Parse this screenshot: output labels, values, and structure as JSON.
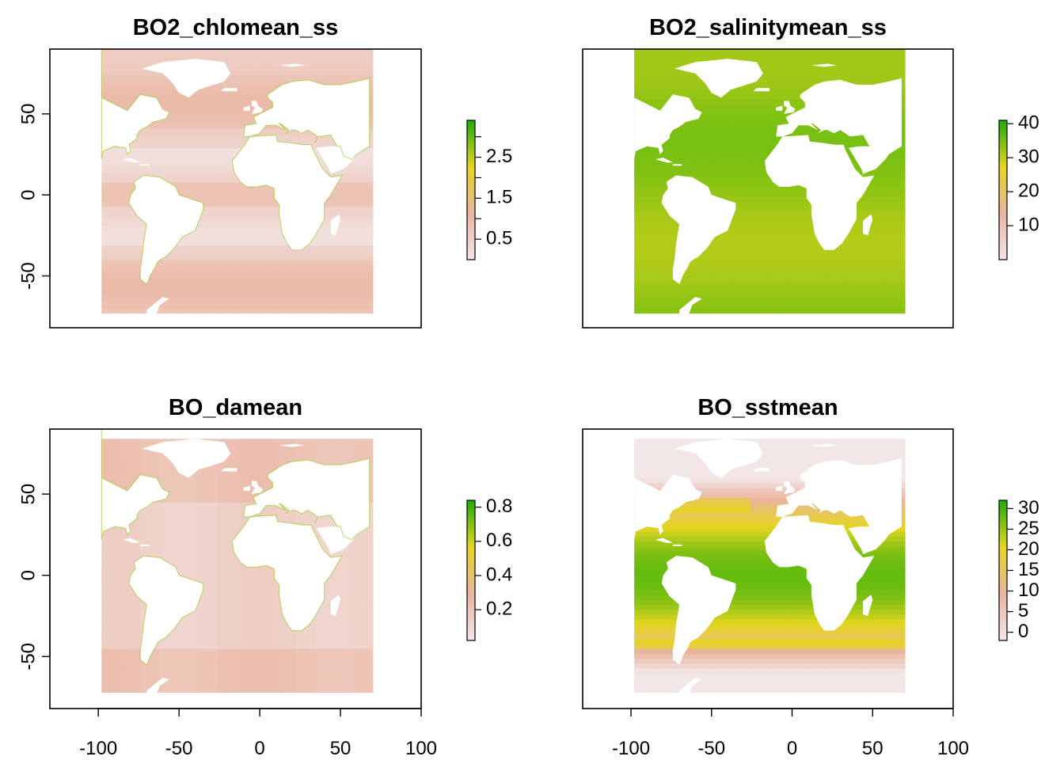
{
  "figure": {
    "colors": {
      "ocean_low": "#f2e6e6",
      "ocean_mid": "#eab49f",
      "mid_yellow": "#e6d520",
      "high_green": "#1cae05",
      "land": "#ffffff",
      "frame": "#000000"
    }
  },
  "chart_data": [
    {
      "type": "heatmap",
      "title": "BO2_chlomean_ss",
      "xlabel": "",
      "ylabel": "",
      "xlim": [
        -130,
        100
      ],
      "ylim": [
        -82,
        90
      ],
      "x_ticks": [],
      "x_tick_labels": [],
      "y_ticks": [
        -50,
        0,
        50
      ],
      "y_tick_labels": [
        "-50",
        "0",
        "50"
      ],
      "layer": "chlorophyll",
      "colorbar": {
        "range": [
          0,
          3.4
        ],
        "ticks": [
          0.5,
          1,
          1.5,
          2,
          2.5,
          3
        ],
        "labels": [
          "0.5",
          "",
          "1.5",
          "",
          "2.5",
          ""
        ]
      }
    },
    {
      "type": "heatmap",
      "title": "BO2_salinitymean_ss",
      "xlabel": "",
      "ylabel": "",
      "xlim": [
        -130,
        100
      ],
      "ylim": [
        -82,
        90
      ],
      "x_ticks": [],
      "x_tick_labels": [],
      "y_ticks": [],
      "y_tick_labels": [],
      "layer": "salinity",
      "colorbar": {
        "range": [
          0,
          41
        ],
        "ticks": [
          10,
          20,
          30,
          40
        ],
        "labels": [
          "10",
          "20",
          "30",
          "40"
        ]
      }
    },
    {
      "type": "heatmap",
      "title": "BO_damean",
      "xlabel": "",
      "ylabel": "",
      "xlim": [
        -130,
        100
      ],
      "ylim": [
        -82,
        90
      ],
      "x_ticks": [
        -100,
        -50,
        0,
        50,
        100
      ],
      "x_tick_labels": [
        "-100",
        "-50",
        "0",
        "50",
        "100"
      ],
      "y_ticks": [
        -50,
        0,
        50
      ],
      "y_tick_labels": [
        "-50",
        "0",
        "50"
      ],
      "layer": "diffuse_attenuation",
      "colorbar": {
        "range": [
          0.02,
          0.84
        ],
        "ticks": [
          0.2,
          0.4,
          0.6,
          0.8
        ],
        "labels": [
          "0.2",
          "0.4",
          "0.6",
          "0.8"
        ]
      }
    },
    {
      "type": "heatmap",
      "title": "BO_sstmean",
      "xlabel": "",
      "ylabel": "",
      "xlim": [
        -130,
        100
      ],
      "ylim": [
        -82,
        90
      ],
      "x_ticks": [
        -100,
        -50,
        0,
        50,
        100
      ],
      "x_tick_labels": [
        "-100",
        "-50",
        "0",
        "50",
        "100"
      ],
      "y_ticks": [],
      "y_tick_labels": [],
      "layer": "sea_surface_temperature",
      "colorbar": {
        "range": [
          -2,
          32
        ],
        "ticks": [
          0,
          5,
          10,
          15,
          20,
          25,
          30
        ],
        "labels": [
          "0",
          "5",
          "10",
          "15",
          "20",
          "25",
          "30"
        ]
      }
    }
  ]
}
